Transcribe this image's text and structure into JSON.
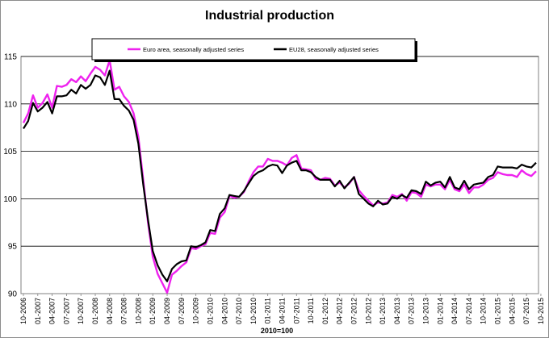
{
  "chart_data": {
    "type": "line",
    "title": "Industrial production",
    "xlabel": "2010=100",
    "ylabel": "",
    "ylim": [
      90,
      115
    ],
    "yticks": [
      90,
      95,
      100,
      105,
      110,
      115
    ],
    "grid": true,
    "legend_position": "top-center",
    "x_tick_labels": [
      "10-2006",
      "01-2007",
      "04-2007",
      "07-2007",
      "10-2007",
      "01-2008",
      "04-2008",
      "07-2008",
      "10-2008",
      "01-2009",
      "04-2009",
      "07-2009",
      "10-2009",
      "01-2010",
      "04-2010",
      "07-2010",
      "10-2010",
      "01-2011",
      "04-2011",
      "07-2011",
      "10-2011",
      "01-2012",
      "04-2012",
      "07-2012",
      "10-2012",
      "01-2013",
      "04-2013",
      "07-2013",
      "10-2013",
      "01-2014",
      "04-2014",
      "07-2014",
      "10-2014",
      "01-2015",
      "04-2015",
      "07-2015",
      "10-2015"
    ],
    "series": [
      {
        "name": "Euro area, seasonally adjusted series",
        "color": "#ee22ee",
        "values": [
          108.0,
          109.0,
          110.9,
          109.6,
          110.1,
          111.0,
          109.6,
          111.9,
          111.8,
          112.0,
          112.6,
          112.3,
          112.9,
          112.4,
          113.2,
          113.9,
          113.6,
          113.0,
          114.6,
          111.5,
          111.8,
          110.8,
          110.2,
          109.0,
          106.5,
          102.0,
          97.5,
          93.9,
          92.1,
          91.1,
          90.1,
          92.0,
          92.4,
          92.9,
          93.3,
          94.8,
          94.7,
          95.0,
          95.2,
          96.4,
          96.3,
          98.0,
          98.6,
          100.3,
          100.1,
          100.2,
          100.7,
          101.8,
          102.8,
          103.4,
          103.4,
          104.2,
          104.0,
          104.0,
          103.8,
          103.5,
          104.3,
          104.6,
          103.2,
          103.1,
          103.0,
          102.1,
          102.0,
          102.2,
          102.1,
          101.4,
          101.7,
          101.2,
          101.6,
          102.3,
          100.9,
          100.3,
          99.8,
          99.3,
          99.6,
          99.5,
          99.6,
          100.4,
          100.2,
          100.5,
          99.8,
          100.7,
          100.6,
          100.2,
          101.5,
          101.3,
          101.5,
          101.5,
          101.0,
          102.0,
          101.0,
          100.8,
          101.5,
          100.6,
          101.2,
          101.2,
          101.5,
          102.0,
          102.2,
          102.8,
          102.6,
          102.5,
          102.5,
          102.3,
          103.0,
          102.6,
          102.4,
          102.9
        ]
      },
      {
        "name": "EU28, seasonally adjusted series",
        "color": "#000000",
        "values": [
          107.4,
          108.2,
          110.1,
          109.2,
          109.6,
          110.2,
          109.0,
          110.8,
          110.8,
          110.9,
          111.5,
          111.1,
          112.0,
          111.6,
          112.0,
          113.0,
          112.8,
          112.0,
          113.5,
          110.5,
          110.5,
          109.8,
          109.3,
          108.3,
          105.8,
          101.5,
          97.8,
          94.5,
          93.0,
          92.0,
          91.3,
          92.6,
          93.1,
          93.4,
          93.5,
          95.0,
          94.9,
          95.1,
          95.4,
          96.7,
          96.6,
          98.4,
          99.0,
          100.4,
          100.3,
          100.2,
          100.8,
          101.6,
          102.4,
          102.8,
          103.0,
          103.4,
          103.6,
          103.5,
          102.7,
          103.5,
          103.8,
          104.0,
          103.0,
          103.0,
          102.8,
          102.3,
          102.0,
          102.0,
          102.0,
          101.3,
          101.9,
          101.1,
          101.7,
          102.3,
          100.5,
          100.0,
          99.5,
          99.2,
          99.8,
          99.4,
          99.5,
          100.2,
          100.0,
          100.4,
          100.1,
          100.9,
          100.8,
          100.5,
          101.8,
          101.4,
          101.7,
          101.8,
          101.2,
          102.3,
          101.2,
          101.0,
          101.9,
          101.0,
          101.5,
          101.6,
          101.7,
          102.3,
          102.5,
          103.4,
          103.3,
          103.3,
          103.3,
          103.2,
          103.6,
          103.4,
          103.3,
          103.8
        ]
      }
    ]
  }
}
